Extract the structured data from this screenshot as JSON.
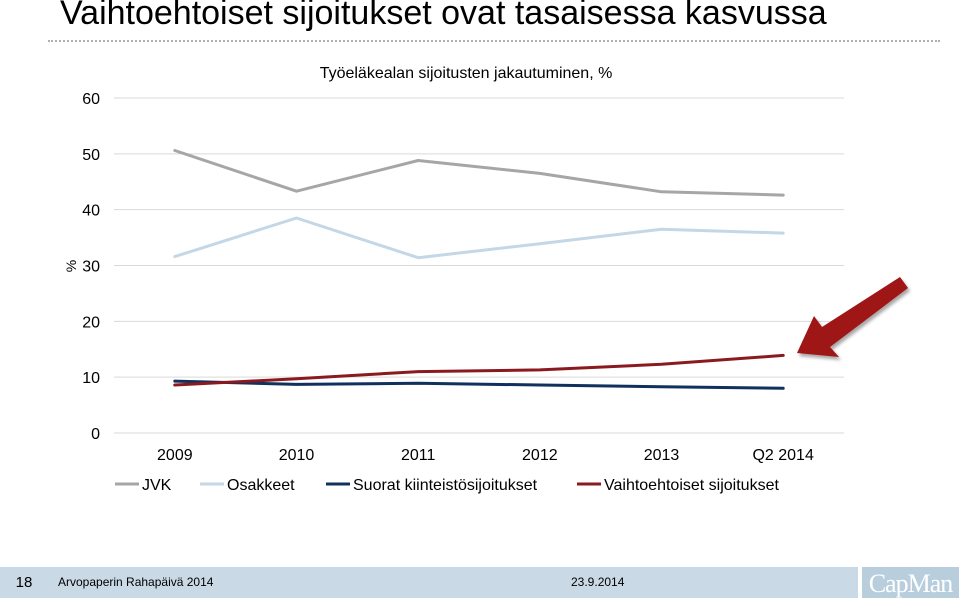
{
  "slide": {
    "title": "Vaihtoehtoiset sijoitukset ovat tasaisessa kasvussa",
    "page_number": "18",
    "event": "Arvopaperin Rahapäivä 2014",
    "date": "23.9.2014",
    "logo_text": "CapMan"
  },
  "chart_data": {
    "type": "line",
    "title": "Työeläkealan sijoitusten jakautuminen, %",
    "xlabel": "",
    "ylabel": "%",
    "categories": [
      "2009",
      "2010",
      "2011",
      "2012",
      "2013",
      "Q2 2014"
    ],
    "ylim": [
      0,
      60
    ],
    "yticks": [
      0,
      10,
      20,
      30,
      40,
      50,
      60
    ],
    "grid": true,
    "legend_position": "bottom",
    "series": [
      {
        "name": "JVK",
        "color": "#a6a6a6",
        "values": [
          50.6,
          43.3,
          48.8,
          46.5,
          43.2,
          42.6
        ]
      },
      {
        "name": "Osakkeet",
        "color": "#c4d7e6",
        "values": [
          31.6,
          38.5,
          31.4,
          33.9,
          36.5,
          35.8
        ]
      },
      {
        "name": "Suorat kiinteistösijoitukset",
        "color": "#10305e",
        "values": [
          9.3,
          8.7,
          8.9,
          8.6,
          8.3,
          8.0
        ]
      },
      {
        "name": "Vaihtoehtoiset sijoitukset",
        "color": "#8b1a1f",
        "values": [
          8.6,
          9.7,
          11.0,
          11.3,
          12.3,
          13.9
        ]
      }
    ],
    "annotation": {
      "type": "arrow",
      "color": "#9e1316",
      "points_to_series": "Vaihtoehtoiset sijoitukset"
    }
  }
}
